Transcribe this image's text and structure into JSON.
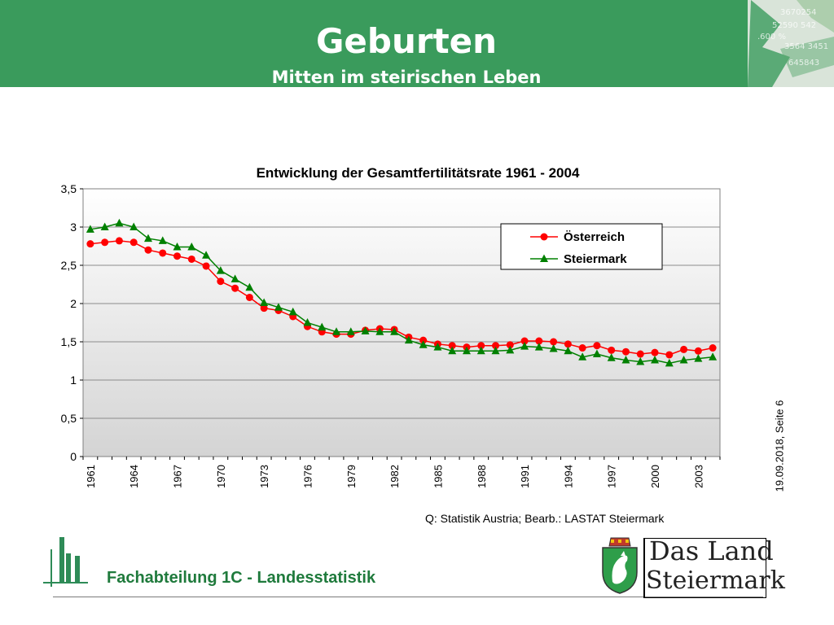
{
  "header": {
    "title": "Geburten",
    "subtitle": "Mitten im steirischen Leben"
  },
  "side_date": "19.09.2018, Seite 6",
  "source": "Q: Statistik Austria; Bearb.: LASTAT Steiermark",
  "footer": {
    "department": "Fachabteilung 1C -  Landesstatistik",
    "logo_line1": "Das Land",
    "logo_line2": "Steiermark"
  },
  "colors": {
    "banner": "#3a9b5c",
    "oesterreich": "#ff0000",
    "steiermark": "#008000",
    "department_text": "#1f7a3c"
  },
  "chart_data": {
    "type": "line",
    "title": "Entwicklung der Gesamtfertilitätsrate 1961 - 2004",
    "xlabel": "",
    "ylabel": "",
    "ylim": [
      0,
      3.5
    ],
    "yticks": [
      "0",
      "0,5",
      "1",
      "1,5",
      "2",
      "2,5",
      "3",
      "3,5"
    ],
    "ytick_values": [
      0,
      0.5,
      1,
      1.5,
      2,
      2.5,
      3,
      3.5
    ],
    "xticks": [
      "1961",
      "1964",
      "1967",
      "1970",
      "1973",
      "1976",
      "1979",
      "1982",
      "1985",
      "1988",
      "1991",
      "1994",
      "1997",
      "2000",
      "2003"
    ],
    "grid": true,
    "legend_position": "top-right",
    "x": [
      1961,
      1962,
      1963,
      1964,
      1965,
      1966,
      1967,
      1968,
      1969,
      1970,
      1971,
      1972,
      1973,
      1974,
      1975,
      1976,
      1977,
      1978,
      1979,
      1980,
      1981,
      1982,
      1983,
      1984,
      1985,
      1986,
      1987,
      1988,
      1989,
      1990,
      1991,
      1992,
      1993,
      1994,
      1995,
      1996,
      1997,
      1998,
      1999,
      2000,
      2001,
      2002,
      2003,
      2004
    ],
    "series": [
      {
        "name": "Österreich",
        "marker": "circle",
        "values": [
          2.78,
          2.8,
          2.82,
          2.8,
          2.7,
          2.66,
          2.62,
          2.58,
          2.49,
          2.29,
          2.2,
          2.08,
          1.94,
          1.91,
          1.83,
          1.7,
          1.63,
          1.6,
          1.6,
          1.65,
          1.67,
          1.66,
          1.56,
          1.52,
          1.47,
          1.45,
          1.43,
          1.45,
          1.45,
          1.46,
          1.51,
          1.51,
          1.5,
          1.47,
          1.42,
          1.45,
          1.39,
          1.37,
          1.34,
          1.36,
          1.33,
          1.4,
          1.38,
          1.42
        ]
      },
      {
        "name": "Steiermark",
        "marker": "triangle",
        "values": [
          2.97,
          3.0,
          3.05,
          3.0,
          2.85,
          2.82,
          2.74,
          2.74,
          2.63,
          2.43,
          2.32,
          2.21,
          2.01,
          1.95,
          1.89,
          1.75,
          1.69,
          1.63,
          1.63,
          1.64,
          1.63,
          1.63,
          1.52,
          1.46,
          1.43,
          1.38,
          1.38,
          1.38,
          1.38,
          1.39,
          1.44,
          1.43,
          1.41,
          1.38,
          1.3,
          1.34,
          1.29,
          1.26,
          1.24,
          1.26,
          1.22,
          1.26,
          1.28,
          1.3
        ]
      }
    ]
  }
}
